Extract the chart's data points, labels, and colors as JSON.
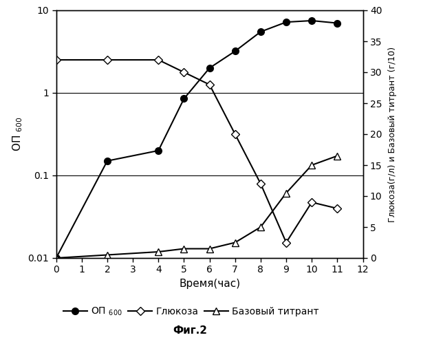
{
  "time_op": [
    0,
    2,
    4,
    5,
    6,
    7,
    8,
    9,
    10,
    11
  ],
  "op600": [
    0.01,
    0.15,
    0.2,
    0.85,
    2.0,
    3.2,
    5.5,
    7.2,
    7.5,
    7.0
  ],
  "time_glucose": [
    0,
    2,
    4,
    5,
    6,
    7,
    8,
    9,
    10,
    11
  ],
  "glucose": [
    32,
    32,
    32,
    30,
    28,
    20,
    12,
    2.5,
    9.0,
    8.0
  ],
  "time_titrant": [
    0,
    2,
    4,
    5,
    6,
    7,
    8,
    9,
    10,
    11
  ],
  "titrant": [
    0,
    0.5,
    1.0,
    1.5,
    1.5,
    2.5,
    5.0,
    10.5,
    15.0,
    16.5
  ],
  "xlabel": "Время(час)",
  "ylabel_left": "ОП $_{600}$",
  "ylabel_right": "Глюкоза(г/л) и Базовый титрант (г/10)",
  "label_op600": "ОП $_{600}$",
  "label_glucose": "Глюкоза",
  "label_titrant": "Базовый титрант",
  "fig_title": "Фиг.2",
  "hline_values": [
    0.1,
    1.0
  ],
  "xlim": [
    0,
    12
  ],
  "ylim_left": [
    0.01,
    10
  ],
  "ylim_right": [
    0,
    40
  ],
  "yticks_right": [
    0,
    5,
    10,
    15,
    20,
    25,
    30,
    35,
    40
  ],
  "xticks": [
    0,
    1,
    2,
    3,
    4,
    5,
    6,
    7,
    8,
    9,
    10,
    11,
    12
  ],
  "bg_color": "#ffffff",
  "line_color": "#000000"
}
